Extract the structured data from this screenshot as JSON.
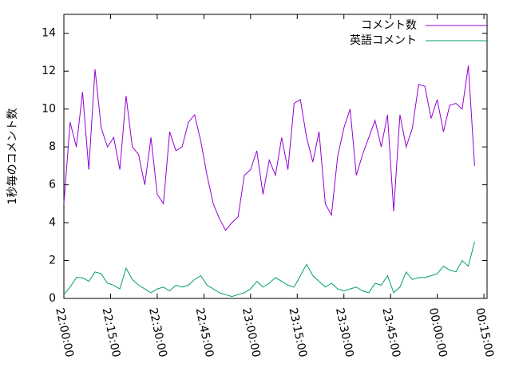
{
  "chart_data": {
    "type": "line",
    "y_label": "1秒毎のコメント数",
    "x": [
      "22:00:00",
      "22:02:00",
      "22:04:00",
      "22:06:00",
      "22:08:00",
      "22:10:00",
      "22:12:00",
      "22:14:00",
      "22:16:00",
      "22:18:00",
      "22:20:00",
      "22:22:00",
      "22:24:00",
      "22:26:00",
      "22:28:00",
      "22:30:00",
      "22:32:00",
      "22:34:00",
      "22:36:00",
      "22:38:00",
      "22:40:00",
      "22:42:00",
      "22:44:00",
      "22:46:00",
      "22:48:00",
      "22:50:00",
      "22:52:00",
      "22:54:00",
      "22:56:00",
      "22:58:00",
      "23:00:00",
      "23:02:00",
      "23:04:00",
      "23:06:00",
      "23:08:00",
      "23:10:00",
      "23:12:00",
      "23:14:00",
      "23:16:00",
      "23:18:00",
      "23:20:00",
      "23:22:00",
      "23:24:00",
      "23:26:00",
      "23:28:00",
      "23:30:00",
      "23:32:00",
      "23:34:00",
      "23:36:00",
      "23:38:00",
      "23:40:00",
      "23:42:00",
      "23:44:00",
      "23:46:00",
      "23:48:00",
      "23:50:00",
      "23:52:00",
      "23:54:00",
      "23:56:00",
      "23:58:00",
      "00:00:00",
      "00:02:00",
      "00:04:00",
      "00:06:00",
      "00:08:00",
      "00:10:00",
      "00:12:00"
    ],
    "series": [
      {
        "name": "コメント数",
        "color": "#9400d3",
        "values": [
          5.0,
          9.3,
          8.0,
          10.9,
          6.8,
          12.1,
          9.0,
          8.0,
          8.5,
          6.8,
          10.7,
          8.0,
          7.6,
          6.0,
          8.5,
          5.5,
          5.0,
          8.8,
          7.8,
          8.0,
          9.3,
          9.7,
          8.3,
          6.5,
          5.0,
          4.2,
          3.6,
          4.0,
          4.3,
          6.5,
          6.8,
          7.8,
          5.5,
          7.3,
          6.5,
          8.5,
          6.8,
          10.3,
          10.5,
          8.5,
          7.2,
          8.8,
          5.0,
          4.4,
          7.5,
          9.0,
          10.0,
          6.5,
          7.6,
          8.5,
          9.4,
          8.0,
          9.7,
          4.6,
          9.7,
          8.0,
          9.0,
          11.3,
          11.2,
          9.5,
          10.5,
          8.8,
          10.2,
          10.3,
          10.0,
          12.3,
          7.0
        ]
      },
      {
        "name": "英語コメント",
        "color": "#009e73",
        "values": [
          0.2,
          0.6,
          1.1,
          1.1,
          0.9,
          1.4,
          1.3,
          0.8,
          0.7,
          0.5,
          1.6,
          1.0,
          0.7,
          0.5,
          0.3,
          0.5,
          0.6,
          0.4,
          0.7,
          0.6,
          0.7,
          1.0,
          1.2,
          0.7,
          0.5,
          0.3,
          0.2,
          0.1,
          0.2,
          0.3,
          0.5,
          0.9,
          0.6,
          0.8,
          1.1,
          0.9,
          0.7,
          0.6,
          1.2,
          1.8,
          1.2,
          0.9,
          0.6,
          0.8,
          0.5,
          0.4,
          0.5,
          0.6,
          0.4,
          0.3,
          0.8,
          0.7,
          1.2,
          0.3,
          0.6,
          1.4,
          1.0,
          1.1,
          1.1,
          1.2,
          1.3,
          1.7,
          1.5,
          1.4,
          2.0,
          1.7,
          3.0
        ]
      }
    ],
    "xlim": [
      "22:00:00",
      "00:16:00"
    ],
    "xticks": [
      "22:00:00",
      "22:15:00",
      "22:30:00",
      "22:45:00",
      "23:00:00",
      "23:15:00",
      "23:30:00",
      "23:45:00",
      "00:00:00",
      "00:15:00"
    ],
    "ylim": [
      0,
      15
    ],
    "yticks": [
      0,
      2,
      4,
      6,
      8,
      10,
      12,
      14
    ],
    "legend": "top-right"
  }
}
